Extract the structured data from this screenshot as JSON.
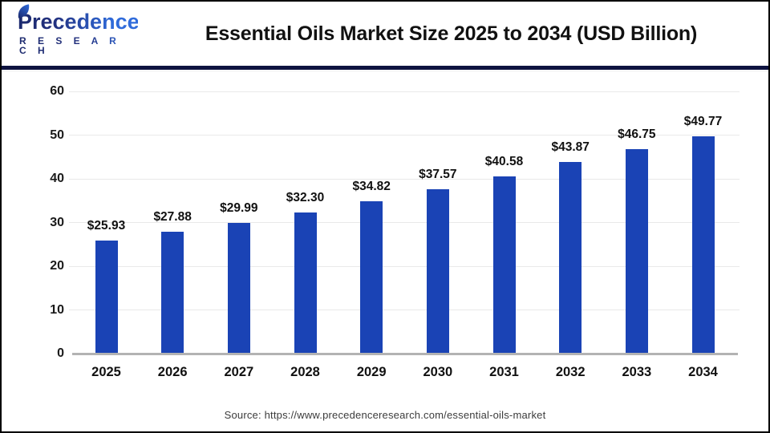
{
  "header": {
    "logo_line1": "Precedence",
    "logo_line2": "R E S E A R C H",
    "title": "Essential Oils Market Size 2025 to 2034 (USD Billion)"
  },
  "chart_data": {
    "type": "bar",
    "title": "Essential Oils Market Size 2025 to 2034 (USD Billion)",
    "categories": [
      "2025",
      "2026",
      "2027",
      "2028",
      "2029",
      "2030",
      "2031",
      "2032",
      "2033",
      "2034"
    ],
    "values": [
      25.93,
      27.88,
      29.99,
      32.3,
      34.82,
      37.57,
      40.58,
      43.87,
      46.75,
      49.77
    ],
    "value_labels": [
      "$25.93",
      "$27.88",
      "$29.99",
      "$32.30",
      "$34.82",
      "$37.57",
      "$40.58",
      "$43.87",
      "$46.75",
      "$49.77"
    ],
    "xlabel": "",
    "ylabel": "",
    "ylim": [
      0,
      60
    ],
    "yticks": [
      0,
      10,
      20,
      30,
      40,
      50,
      60
    ],
    "grid": true,
    "legend": false,
    "bar_color": "#1a43b5"
  },
  "footer": {
    "source": "Source: https://www.precedenceresearch.com/essential-oils-market"
  },
  "colors": {
    "divider": "#0e1340",
    "bar": "#1a43b5",
    "gridline": "#e9e9e9",
    "axis_line": "#b3b3b3",
    "logo_navy": "#1c2a6e",
    "logo_blue": "#2f6bdb"
  }
}
